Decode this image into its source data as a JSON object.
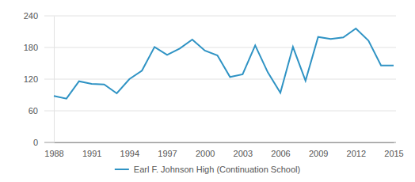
{
  "chart_data": {
    "type": "line",
    "x": [
      1988,
      1989,
      1990,
      1991,
      1992,
      1993,
      1994,
      1995,
      1996,
      1997,
      1998,
      1999,
      2000,
      2001,
      2002,
      2003,
      2004,
      2005,
      2006,
      2007,
      2008,
      2009,
      2010,
      2011,
      2012,
      2013,
      2014,
      2015
    ],
    "series": [
      {
        "name": "Earl F. Johnson High (Continuation School)",
        "color": "#2f93c4",
        "values": [
          88,
          83,
          116,
          111,
          110,
          93,
          120,
          136,
          181,
          166,
          178,
          195,
          174,
          165,
          124,
          129,
          184,
          133,
          94,
          181,
          117,
          200,
          196,
          199,
          216,
          193,
          146,
          146
        ]
      }
    ],
    "xlim": [
      1988,
      2015
    ],
    "xticks": [
      1988,
      1991,
      1994,
      1997,
      2000,
      2003,
      2006,
      2009,
      2012,
      2015
    ],
    "ylim": [
      0,
      240
    ],
    "yticks": [
      0,
      60,
      120,
      180,
      240
    ],
    "grid": true,
    "legend": "bottom"
  }
}
